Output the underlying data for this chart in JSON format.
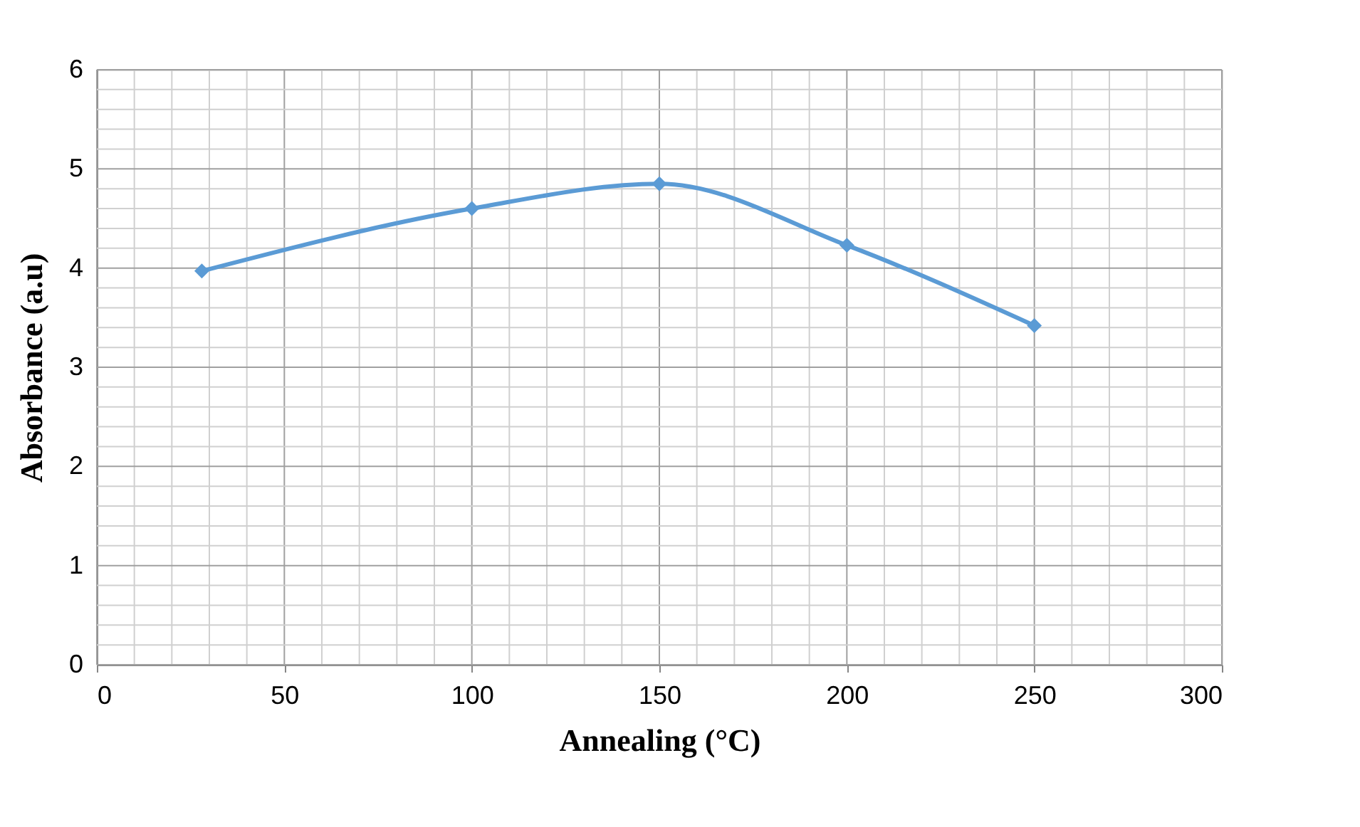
{
  "chart_data": {
    "type": "line",
    "xlabel": "Annealing (°C)",
    "ylabel": "Absorbance (a.u)",
    "x": [
      28,
      100,
      150,
      200,
      250
    ],
    "series": [
      {
        "color": "#5b9bd5",
        "values": [
          3.97,
          4.6,
          4.85,
          4.23,
          3.42
        ]
      }
    ],
    "xlim": [
      0,
      300
    ],
    "xticks": [
      0,
      50,
      100,
      150,
      200,
      250,
      300
    ],
    "ylim": [
      0,
      6
    ],
    "yticks": [
      0,
      1,
      2,
      3,
      4,
      5,
      6
    ],
    "grid": true,
    "marker": "diamond",
    "line_style": "solid"
  }
}
